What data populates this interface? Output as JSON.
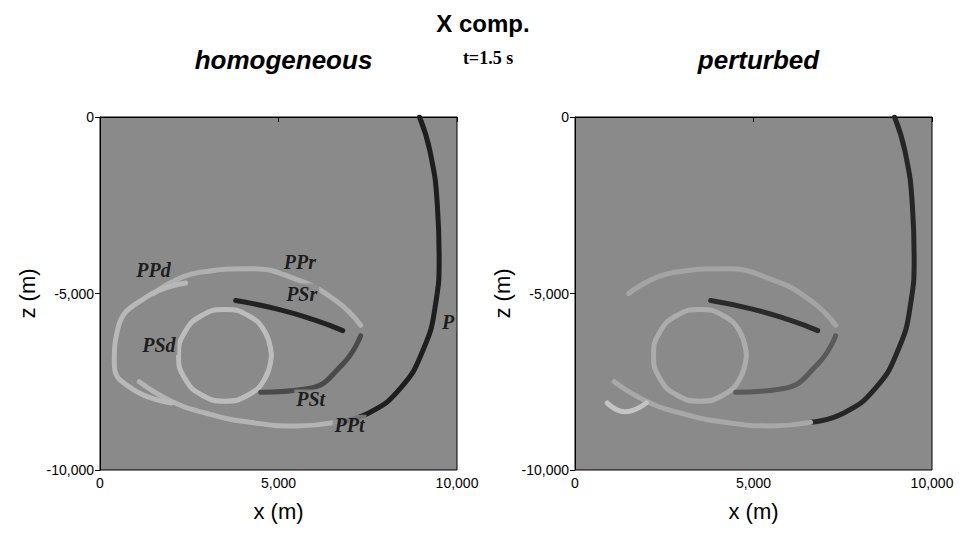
{
  "figure": {
    "title": "X comp.",
    "subtitle": "t=1.5 s"
  },
  "chart_data": [
    {
      "type": "line",
      "title": "homogeneous",
      "xlabel": "x (m)",
      "ylabel": "z (m)",
      "xlim": [
        0,
        10000
      ],
      "xticks": [
        0,
        5000,
        10000
      ],
      "ylim": [
        -10000,
        0
      ],
      "yticks": [
        -10000,
        -5000,
        0
      ],
      "grid": false,
      "series": [
        {
          "color": "#1e1e1e",
          "line_style": "solid",
          "values": [
            [
              8950,
              0
            ],
            [
              9250,
              -1000
            ],
            [
              9450,
              -2500
            ],
            [
              9500,
              -4000
            ],
            [
              9400,
              -5300
            ],
            [
              9050,
              -6600
            ],
            [
              8400,
              -7700
            ],
            [
              7500,
              -8400
            ],
            [
              6600,
              -8650
            ]
          ]
        },
        {
          "color": "#b4b4b4",
          "line_style": "solid",
          "values": [
            [
              6600,
              -8650
            ],
            [
              5500,
              -8750
            ],
            [
              4200,
              -8650
            ],
            [
              3000,
              -8400
            ],
            [
              2000,
              -8050
            ],
            [
              1100,
              -7500
            ]
          ]
        },
        {
          "color": "#222222",
          "line_style": "solid",
          "values": [
            [
              3800,
              -5200
            ],
            [
              5000,
              -5450
            ],
            [
              6000,
              -5750
            ],
            [
              6800,
              -6050
            ]
          ]
        },
        {
          "color": "#b0b0b0",
          "line_style": "solid",
          "values": [
            [
              1500,
              -5000
            ],
            [
              2800,
              -4400
            ],
            [
              4200,
              -4300
            ],
            [
              5500,
              -4600
            ],
            [
              6600,
              -5200
            ],
            [
              7300,
              -5900
            ]
          ]
        },
        {
          "color": "#bcbcbc",
          "line_style": "solid",
          "values": [
            [
              4800,
              -6750
            ],
            [
              4626,
              -6100
            ],
            [
              4150,
              -5624
            ],
            [
              3500,
              -5450
            ],
            [
              2850,
              -5624
            ],
            [
              2374,
              -6100
            ],
            [
              2200,
              -6750
            ],
            [
              2374,
              -7400
            ],
            [
              2850,
              -7876
            ],
            [
              3500,
              -8050
            ],
            [
              4150,
              -7876
            ],
            [
              4626,
              -7400
            ],
            [
              4800,
              -6750
            ]
          ]
        },
        {
          "color": "#b8b8b8",
          "line_style": "solid",
          "values": [
            [
              2400,
              -4700
            ],
            [
              1300,
              -5100
            ],
            [
              500,
              -6000
            ],
            [
              400,
              -7000
            ],
            [
              900,
              -7700
            ],
            [
              2000,
              -8100
            ]
          ]
        },
        {
          "color": "#4a4a4a",
          "line_style": "solid",
          "values": [
            [
              4500,
              -7800
            ],
            [
              5800,
              -7700
            ],
            [
              6800,
              -7000
            ],
            [
              7300,
              -6200
            ]
          ]
        }
      ],
      "annotations": [
        {
          "text": "PPd",
          "x": 1500,
          "y": -4330
        },
        {
          "text": "PPr",
          "x": 5600,
          "y": -4100
        },
        {
          "text": "PSr",
          "x": 5650,
          "y": -5000
        },
        {
          "text": "P",
          "x": 9750,
          "y": -5800
        },
        {
          "text": "PSd",
          "x": 1650,
          "y": -6460
        },
        {
          "text": "PSt",
          "x": 5900,
          "y": -8000
        },
        {
          "text": "PPt",
          "x": 6990,
          "y": -8720
        }
      ]
    },
    {
      "type": "line",
      "title": "perturbed",
      "xlabel": "x (m)",
      "ylabel": "z (m)",
      "xlim": [
        0,
        10000
      ],
      "xticks": [
        0,
        5000,
        10000
      ],
      "ylim": [
        -10000,
        0
      ],
      "yticks": [
        -10000,
        -5000,
        0
      ],
      "grid": false,
      "series": [
        {
          "color": "#262626",
          "line_style": "solid",
          "values": [
            [
              8950,
              0
            ],
            [
              9250,
              -1000
            ],
            [
              9450,
              -2500
            ],
            [
              9500,
              -4000
            ],
            [
              9400,
              -5300
            ],
            [
              9050,
              -6600
            ],
            [
              8400,
              -7700
            ],
            [
              7500,
              -8400
            ],
            [
              6600,
              -8650
            ]
          ]
        },
        {
          "color": "#a8a8a8",
          "line_style": "solid",
          "values": [
            [
              6600,
              -8650
            ],
            [
              5500,
              -8750
            ],
            [
              4200,
              -8650
            ],
            [
              3000,
              -8400
            ],
            [
              2000,
              -8050
            ],
            [
              1100,
              -7500
            ]
          ]
        },
        {
          "color": "#2a2a2a",
          "line_style": "solid",
          "values": [
            [
              3800,
              -5200
            ],
            [
              5000,
              -5450
            ],
            [
              6000,
              -5750
            ],
            [
              6800,
              -6050
            ]
          ]
        },
        {
          "color": "#a4a4a4",
          "line_style": "solid",
          "values": [
            [
              1500,
              -5000
            ],
            [
              2800,
              -4400
            ],
            [
              4200,
              -4300
            ],
            [
              5500,
              -4600
            ],
            [
              6600,
              -5200
            ],
            [
              7300,
              -5900
            ]
          ]
        },
        {
          "color": "#acacac",
          "line_style": "solid",
          "values": [
            [
              4800,
              -6750
            ],
            [
              4626,
              -6100
            ],
            [
              4150,
              -5624
            ],
            [
              3500,
              -5450
            ],
            [
              2850,
              -5624
            ],
            [
              2374,
              -6100
            ],
            [
              2200,
              -6750
            ],
            [
              2374,
              -7400
            ],
            [
              2850,
              -7876
            ],
            [
              3500,
              -8050
            ],
            [
              4150,
              -7876
            ],
            [
              4626,
              -7400
            ],
            [
              4800,
              -6750
            ]
          ]
        },
        {
          "color": "#c4c4c4",
          "line_style": "solid",
          "values": [
            [
              2000,
              -8100
            ],
            [
              1400,
              -8350
            ],
            [
              900,
              -8100
            ]
          ]
        },
        {
          "color": "#5a5a5a",
          "line_style": "solid",
          "values": [
            [
              4500,
              -7800
            ],
            [
              5800,
              -7700
            ],
            [
              6800,
              -7000
            ],
            [
              7300,
              -6200
            ]
          ]
        }
      ],
      "annotations": []
    }
  ]
}
